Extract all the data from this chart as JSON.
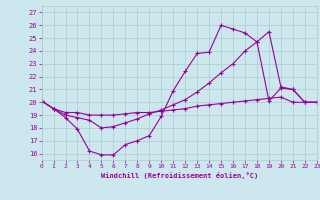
{
  "xlabel": "Windchill (Refroidissement éolien,°C)",
  "bg_color": "#cce8ee",
  "grid_color": "#aacccc",
  "line_color": "#990099",
  "xlim": [
    0,
    23
  ],
  "ylim": [
    15.5,
    27.5
  ],
  "yticks": [
    16,
    17,
    18,
    19,
    20,
    21,
    22,
    23,
    24,
    25,
    26,
    27
  ],
  "xticks": [
    0,
    1,
    2,
    3,
    4,
    5,
    6,
    7,
    8,
    9,
    10,
    11,
    12,
    13,
    14,
    15,
    16,
    17,
    18,
    19,
    20,
    21,
    22,
    23
  ],
  "series1_x": [
    0,
    1,
    2,
    3,
    4,
    5,
    6,
    7,
    8,
    9,
    10,
    11,
    12,
    13,
    14,
    15,
    16,
    17,
    18,
    19,
    20,
    21,
    22,
    23
  ],
  "series1_y": [
    20.1,
    19.5,
    18.8,
    17.9,
    16.2,
    15.9,
    15.9,
    16.7,
    17.0,
    17.4,
    18.9,
    20.9,
    22.4,
    23.8,
    23.9,
    26.0,
    25.7,
    25.4,
    24.7,
    20.1,
    21.1,
    21.0,
    20.0,
    20.0
  ],
  "series2_x": [
    0,
    1,
    2,
    3,
    4,
    5,
    6,
    7,
    8,
    9,
    10,
    11,
    12,
    13,
    14,
    15,
    16,
    17,
    18,
    19,
    20,
    21,
    22,
    23
  ],
  "series2_y": [
    20.1,
    19.5,
    19.2,
    19.2,
    19.0,
    19.0,
    19.0,
    19.1,
    19.2,
    19.2,
    19.3,
    19.4,
    19.5,
    19.7,
    19.8,
    19.9,
    20.0,
    20.1,
    20.2,
    20.3,
    20.4,
    20.0,
    20.0,
    20.0
  ],
  "series3_x": [
    0,
    1,
    2,
    3,
    4,
    5,
    6,
    7,
    8,
    9,
    10,
    11,
    12,
    13,
    14,
    15,
    16,
    17,
    18,
    19,
    20,
    21,
    22,
    23
  ],
  "series3_y": [
    20.1,
    19.5,
    19.0,
    18.8,
    18.6,
    18.0,
    18.1,
    18.4,
    18.7,
    19.1,
    19.4,
    19.8,
    20.2,
    20.8,
    21.5,
    22.3,
    23.0,
    24.0,
    24.7,
    25.5,
    21.2,
    21.0,
    20.0,
    20.0
  ]
}
